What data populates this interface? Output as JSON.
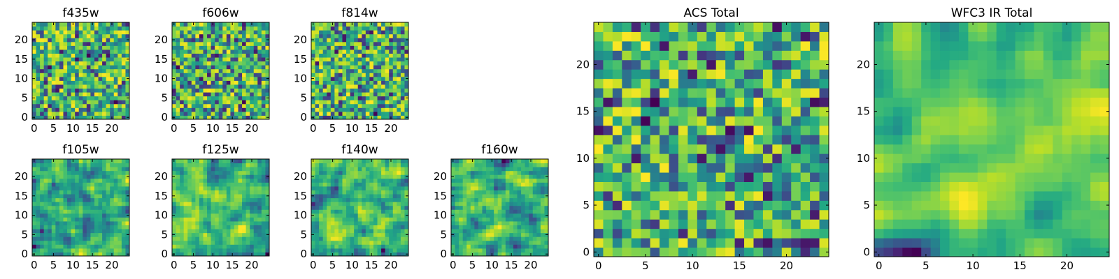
{
  "chart_data": [
    {
      "type": "heatmap",
      "title": "f435w",
      "xlim": [
        0,
        24
      ],
      "ylim": [
        0,
        24
      ],
      "x_ticks": [
        0,
        5,
        10,
        15,
        20
      ],
      "y_ticks": [
        0,
        5,
        10,
        15,
        20
      ],
      "colormap": "viridis",
      "smoothness": 0,
      "seed": 11,
      "grid": false
    },
    {
      "type": "heatmap",
      "title": "f606w",
      "xlim": [
        0,
        24
      ],
      "ylim": [
        0,
        24
      ],
      "x_ticks": [
        0,
        5,
        10,
        15,
        20
      ],
      "y_ticks": [
        0,
        5,
        10,
        15,
        20
      ],
      "colormap": "viridis",
      "smoothness": 0,
      "seed": 23,
      "grid": false
    },
    {
      "type": "heatmap",
      "title": "f814w",
      "xlim": [
        0,
        24
      ],
      "ylim": [
        0,
        24
      ],
      "x_ticks": [
        0,
        5,
        10,
        15,
        20
      ],
      "y_ticks": [
        0,
        5,
        10,
        15,
        20
      ],
      "colormap": "viridis",
      "smoothness": 0,
      "seed": 37,
      "grid": false
    },
    {
      "type": "heatmap",
      "title": "f105w",
      "xlim": [
        0,
        24
      ],
      "ylim": [
        0,
        24
      ],
      "x_ticks": [
        0,
        5,
        10,
        15,
        20
      ],
      "y_ticks": [
        0,
        5,
        10,
        15,
        20
      ],
      "colormap": "viridis",
      "smoothness": 1,
      "seed": 41,
      "grid": false
    },
    {
      "type": "heatmap",
      "title": "f125w",
      "xlim": [
        0,
        24
      ],
      "ylim": [
        0,
        24
      ],
      "x_ticks": [
        0,
        5,
        10,
        15,
        20
      ],
      "y_ticks": [
        0,
        5,
        10,
        15,
        20
      ],
      "colormap": "viridis",
      "smoothness": 1,
      "seed": 53,
      "grid": false
    },
    {
      "type": "heatmap",
      "title": "f140w",
      "xlim": [
        0,
        24
      ],
      "ylim": [
        0,
        24
      ],
      "x_ticks": [
        0,
        5,
        10,
        15,
        20
      ],
      "y_ticks": [
        0,
        5,
        10,
        15,
        20
      ],
      "colormap": "viridis",
      "smoothness": 1,
      "seed": 67,
      "grid": false
    },
    {
      "type": "heatmap",
      "title": "f160w",
      "xlim": [
        0,
        24
      ],
      "ylim": [
        0,
        24
      ],
      "x_ticks": [
        0,
        5,
        10,
        15,
        20
      ],
      "y_ticks": [
        0,
        5,
        10,
        15,
        20
      ],
      "colormap": "viridis",
      "smoothness": 1,
      "seed": 71,
      "grid": false
    },
    {
      "type": "heatmap",
      "title": "ACS Total",
      "xlim": [
        0,
        24
      ],
      "ylim": [
        0,
        24
      ],
      "x_ticks": [
        0,
        5,
        10,
        15,
        20
      ],
      "y_ticks": [
        0,
        5,
        10,
        15,
        20
      ],
      "colormap": "viridis",
      "smoothness": 0,
      "seed": 83,
      "grid": false
    },
    {
      "type": "heatmap",
      "title": "WFC3 IR Total",
      "xlim": [
        0,
        24
      ],
      "ylim": [
        0,
        24
      ],
      "x_ticks": [
        0,
        5,
        10,
        15,
        20
      ],
      "y_ticks": [
        0,
        5,
        10,
        15,
        20
      ],
      "colormap": "viridis",
      "smoothness": 2,
      "seed": 97,
      "grid": false
    }
  ]
}
